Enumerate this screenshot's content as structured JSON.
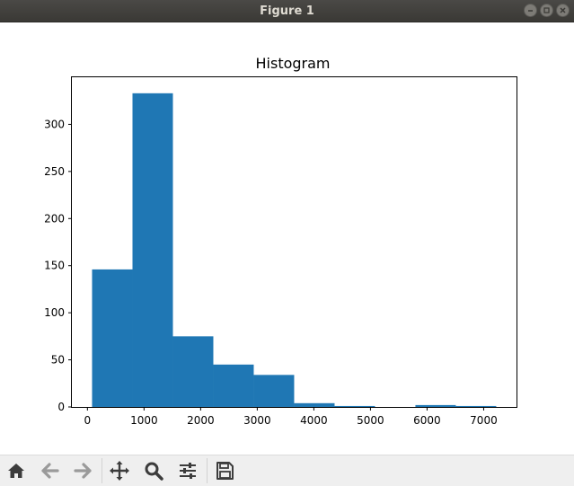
{
  "window": {
    "title": "Figure 1"
  },
  "toolbar": {
    "buttons": [
      {
        "name": "home-icon",
        "tooltip": "Home"
      },
      {
        "name": "back-icon",
        "tooltip": "Back"
      },
      {
        "name": "forward-icon",
        "tooltip": "Forward"
      },
      {
        "name": "pan-icon",
        "tooltip": "Pan"
      },
      {
        "name": "zoom-icon",
        "tooltip": "Zoom"
      },
      {
        "name": "configure-subplots-icon",
        "tooltip": "Subplots"
      },
      {
        "name": "save-icon",
        "tooltip": "Save"
      }
    ]
  },
  "colors": {
    "bar": "#1f77b4",
    "titlebar": "#3c3b37",
    "toolbar": "#efefef"
  },
  "chart_data": {
    "type": "bar",
    "title": "Histogram",
    "xlabel": "",
    "ylabel": "",
    "bin_edges": [
      82,
      796,
      1510,
      2224,
      2938,
      3652,
      4366,
      5080,
      5794,
      6508,
      7222
    ],
    "values": [
      146,
      333,
      75,
      45,
      34,
      4,
      1,
      0,
      2,
      1
    ],
    "xlim": [
      -275,
      7580
    ],
    "ylim": [
      0,
      350
    ],
    "xticks": [
      0,
      1000,
      2000,
      3000,
      4000,
      5000,
      6000,
      7000
    ],
    "yticks": [
      0,
      50,
      100,
      150,
      200,
      250,
      300
    ],
    "xtick_labels": [
      "0",
      "1000",
      "2000",
      "3000",
      "4000",
      "5000",
      "6000",
      "7000"
    ],
    "ytick_labels": [
      "0",
      "50",
      "100",
      "150",
      "200",
      "250",
      "300"
    ],
    "grid": false,
    "legend": false
  }
}
